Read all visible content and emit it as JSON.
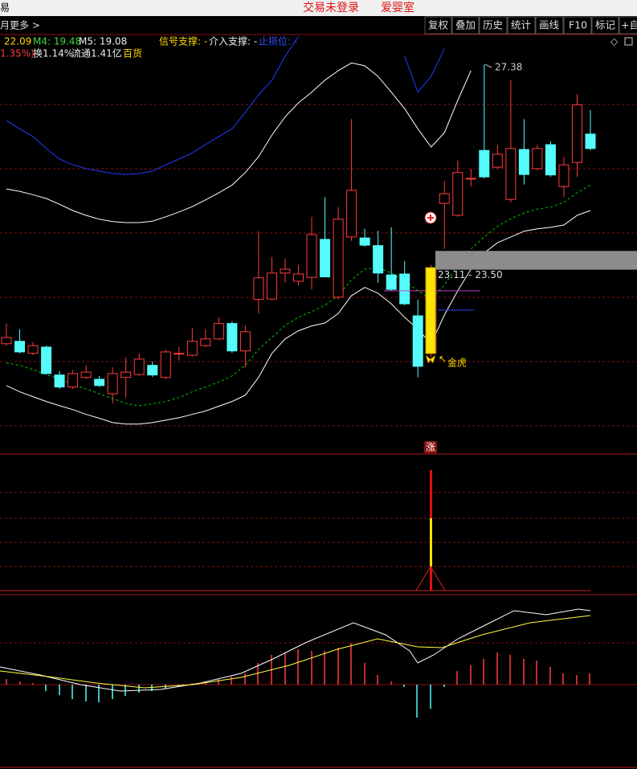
{
  "header": {
    "app_char": "易",
    "title": "交易未登录",
    "stock": "爱婴室",
    "buttons": [
      "复权",
      "叠加",
      "历史",
      "统计",
      "画线",
      "F10",
      "标记",
      "+自"
    ],
    "period": "月",
    "more": "更多 >",
    "ma3": "22.09",
    "ma4": "M4: 19.48",
    "ma5": "M5: 19.08",
    "signal_support": "信号支撑: -",
    "entry_support": "介入支撑: -",
    "stop_loss": "止损位: -",
    "change": "1.35%)",
    "turnover": "换1.14%",
    "float": "流通1.41亿",
    "sector": "百货",
    "indicator_label": "涨"
  },
  "chart_data": {
    "type": "candlestick",
    "ylim": [
      19.36,
      28.05
    ],
    "colors": {
      "up": "#ff3c3c",
      "down": "#54fcfc"
    },
    "open": [
      21.57,
      21.62,
      21.37,
      21.5,
      20.92,
      20.67,
      20.87,
      20.83,
      20.53,
      20.87,
      20.93,
      21.12,
      20.87,
      21.36,
      21.33,
      21.53,
      21.67,
      21.99,
      21.42,
      22.49,
      22.5,
      23.04,
      22.87,
      22.95,
      23.74,
      22.54,
      23.79,
      23.77,
      23.61,
      23.0,
      23.02,
      22.15,
      21.37,
      24.49,
      24.24,
      25.0,
      25.59,
      25.24,
      24.57,
      25.61,
      25.21,
      25.71,
      24.84,
      25.34,
      25.93
    ],
    "close": [
      21.7,
      21.4,
      21.53,
      20.95,
      20.67,
      20.95,
      20.98,
      20.7,
      20.95,
      20.98,
      21.25,
      20.92,
      21.4,
      21.37,
      21.62,
      21.67,
      21.99,
      21.42,
      21.82,
      22.94,
      23.04,
      23.12,
      23.02,
      23.84,
      22.96,
      24.16,
      24.76,
      23.62,
      23.04,
      22.7,
      22.4,
      21.1,
      23.15,
      24.69,
      25.13,
      25.01,
      25.04,
      25.51,
      25.63,
      25.09,
      25.63,
      25.08,
      25.29,
      26.54,
      25.63
    ],
    "high": [
      21.99,
      21.87,
      21.6,
      21.53,
      21.0,
      21.03,
      21.12,
      20.9,
      21.08,
      21.28,
      21.37,
      21.2,
      21.45,
      21.5,
      21.9,
      21.87,
      22.12,
      22.04,
      21.95,
      23.91,
      23.37,
      23.34,
      23.21,
      24.21,
      24.62,
      24.41,
      26.24,
      23.96,
      23.92,
      23.99,
      23.29,
      22.49,
      23.21,
      24.96,
      25.38,
      25.21,
      27.38,
      25.71,
      27.05,
      26.24,
      25.71,
      25.78,
      25.46,
      26.76,
      26.43
    ],
    "low": [
      21.53,
      21.37,
      21.33,
      20.93,
      20.63,
      20.63,
      20.83,
      20.67,
      20.33,
      20.45,
      20.9,
      20.88,
      20.83,
      21.23,
      21.3,
      21.5,
      21.64,
      21.38,
      21.08,
      22.2,
      22.47,
      22.84,
      22.79,
      22.7,
      22.95,
      22.49,
      23.71,
      23.59,
      22.84,
      22.67,
      22.37,
      20.87,
      21.28,
      23.54,
      24.21,
      24.84,
      25.01,
      25.21,
      24.51,
      24.88,
      25.18,
      25.04,
      24.62,
      25.04,
      25.59
    ],
    "series": [
      {
        "color": "#ffffff",
        "values": [
          24.79,
          24.74,
          24.67,
          24.59,
          24.47,
          24.34,
          24.24,
          24.16,
          24.11,
          24.09,
          24.09,
          24.12,
          24.21,
          24.31,
          24.42,
          24.56,
          24.71,
          24.87,
          25.13,
          25.46,
          25.91,
          26.29,
          26.58,
          26.8,
          27.05,
          27.25,
          27.41,
          27.35,
          27.13,
          26.8,
          26.46,
          26.04,
          25.66,
          25.96,
          26.63,
          27.25,
          null,
          null,
          null,
          null,
          null,
          null,
          null,
          null,
          null
        ]
      },
      {
        "color": "#00c800",
        "dashed": true,
        "values": [
          21.17,
          21.12,
          21.03,
          20.93,
          20.83,
          20.73,
          20.63,
          20.53,
          20.43,
          20.33,
          20.28,
          20.32,
          20.37,
          20.45,
          20.57,
          20.67,
          20.77,
          20.9,
          21.12,
          21.45,
          21.7,
          21.95,
          22.12,
          22.24,
          22.37,
          22.57,
          22.9,
          23.12,
          23.15,
          23.04,
          22.87,
          22.67,
          22.5,
          22.79,
          23.2,
          23.54,
          23.79,
          24.01,
          24.17,
          24.29,
          24.37,
          24.41,
          24.51,
          24.71,
          24.87
        ]
      },
      {
        "color": "#ffffff",
        "values": [
          20.7,
          20.57,
          20.47,
          20.37,
          20.28,
          20.2,
          20.1,
          20.02,
          19.93,
          19.9,
          19.9,
          19.93,
          19.98,
          20.03,
          20.1,
          20.17,
          20.27,
          20.37,
          20.5,
          20.87,
          21.37,
          21.67,
          21.84,
          21.94,
          22.0,
          22.2,
          22.57,
          22.74,
          22.62,
          22.4,
          22.12,
          21.87,
          21.57,
          22.17,
          22.67,
          23.12,
          23.46,
          23.67,
          23.79,
          23.91,
          23.96,
          23.99,
          24.04,
          24.24,
          24.34
        ]
      },
      {
        "color": "#1e3cff",
        "values": [
          26.21,
          26.04,
          25.88,
          25.63,
          25.41,
          25.29,
          25.21,
          25.16,
          25.11,
          25.09,
          25.11,
          25.16,
          25.29,
          25.41,
          25.54,
          25.71,
          25.88,
          26.04,
          26.38,
          26.75,
          27.05,
          27.55,
          27.96,
          null,
          null,
          null,
          null,
          null,
          null,
          null,
          27.55,
          26.8,
          27.13,
          27.71,
          null,
          null,
          null,
          null,
          null,
          null,
          null,
          null,
          null,
          null,
          null
        ]
      }
    ],
    "high_annotation": 27.38,
    "range_box": {
      "low": 23.11,
      "high": 23.5,
      "label": "23.11 - 23.50"
    },
    "levels": [
      {
        "color": "#c040c0",
        "value": 22.67
      },
      {
        "color": "#3040ff",
        "value": 22.27
      }
    ],
    "signal_label": "金虎"
  }
}
